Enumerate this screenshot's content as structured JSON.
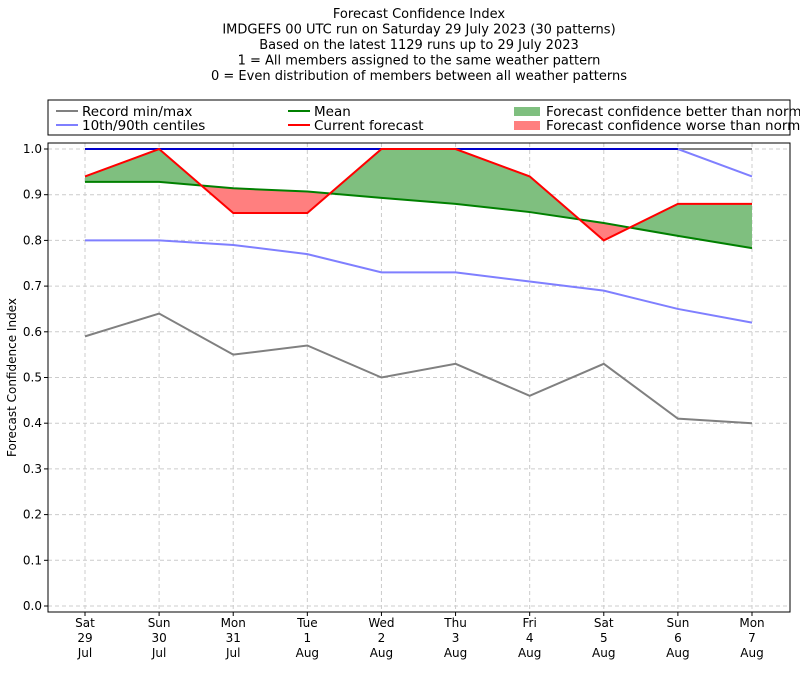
{
  "chart_data": {
    "type": "line",
    "title_lines": [
      "Forecast Confidence Index",
      "IMDGEFS 00 UTC run on Saturday 29 July 2023 (30 patterns)",
      "Based on the latest 1129 runs up to 29 July 2023",
      "1 = All members assigned to the same weather pattern",
      "0 = Even distribution of members between all weather patterns"
    ],
    "ylabel": "Forecast Confidence Index",
    "ylim": [
      -0.01,
      1.01
    ],
    "yticks": [
      "0.0",
      "0.1",
      "0.2",
      "0.3",
      "0.4",
      "0.5",
      "0.6",
      "0.7",
      "0.8",
      "0.9",
      "1.0"
    ],
    "categories": [
      [
        "Sat",
        "29",
        "Jul"
      ],
      [
        "Sun",
        "30",
        "Jul"
      ],
      [
        "Mon",
        "31",
        "Jul"
      ],
      [
        "Tue",
        "1",
        "Aug"
      ],
      [
        "Wed",
        "2",
        "Aug"
      ],
      [
        "Thu",
        "3",
        "Aug"
      ],
      [
        "Fri",
        "4",
        "Aug"
      ],
      [
        "Sat",
        "5",
        "Aug"
      ],
      [
        "Sun",
        "6",
        "Aug"
      ],
      [
        "Mon",
        "7",
        "Aug"
      ]
    ],
    "grid": true,
    "legend": {
      "placement": "top",
      "entries": [
        {
          "label": "Record min/max",
          "color": "#808080",
          "kind": "line"
        },
        {
          "label": "Mean",
          "color": "#008000",
          "kind": "line"
        },
        {
          "label": "Forecast confidence better than normal",
          "color": "#7fbf7f",
          "kind": "patch"
        },
        {
          "label": "10th/90th centiles",
          "color": "#7f7fff",
          "kind": "line"
        },
        {
          "label": "Current forecast",
          "color": "#ff0000",
          "kind": "line"
        },
        {
          "label": "Forecast confidence worse than normal",
          "color": "#ff7f7f",
          "kind": "patch"
        }
      ]
    },
    "series": [
      {
        "name": "Record max",
        "color": "#808080",
        "values": [
          1,
          1,
          1,
          1,
          1,
          1,
          1,
          1,
          1,
          1
        ]
      },
      {
        "name": "Record min",
        "color": "#808080",
        "values": [
          0.59,
          0.64,
          0.55,
          0.57,
          0.5,
          0.53,
          0.46,
          0.53,
          0.41,
          0.4
        ]
      },
      {
        "name": "90th centile",
        "color": "#7f7fff",
        "values": [
          1,
          1,
          1,
          1,
          1,
          1,
          1,
          1,
          1,
          0.94
        ]
      },
      {
        "name": "10th centile",
        "color": "#7f7fff",
        "values": [
          0.8,
          0.8,
          0.79,
          0.77,
          0.73,
          0.73,
          0.71,
          0.69,
          0.65,
          0.62
        ]
      },
      {
        "name": "Mean",
        "color": "#008000",
        "values": [
          0.928,
          0.928,
          0.914,
          0.907,
          0.893,
          0.88,
          0.862,
          0.838,
          0.81,
          0.783
        ]
      },
      {
        "name": "Current forecast",
        "color": "#ff0000",
        "values": [
          0.94,
          1.0,
          0.86,
          0.86,
          1.0,
          1.0,
          0.94,
          0.8,
          0.88,
          0.88
        ]
      }
    ],
    "record_max_line_color": "#0000cc"
  }
}
